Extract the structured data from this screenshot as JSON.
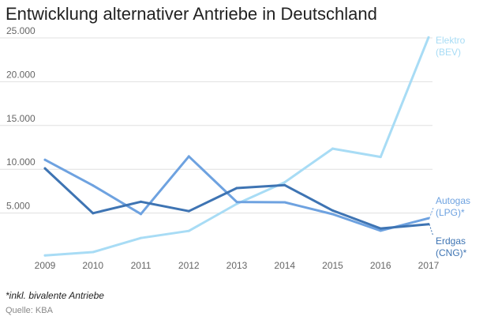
{
  "chart_data": {
    "type": "line",
    "title": "Entwicklung alternativer Antriebe in Deutschland",
    "xlabel": "",
    "ylabel": "",
    "x": [
      "2009",
      "2010",
      "2011",
      "2012",
      "2013",
      "2014",
      "2015",
      "2016",
      "2017"
    ],
    "ylim": [
      0,
      25000
    ],
    "yticks": [
      5000,
      10000,
      15000,
      20000,
      25000
    ],
    "ytick_labels": [
      "5.000",
      "10.000",
      "15.000",
      "20.000",
      "25.000"
    ],
    "grid": true,
    "legend": "end-of-line labels",
    "series": [
      {
        "name_lines": [
          "Elektro",
          "(BEV)"
        ],
        "color": "#a8dcf5",
        "values": [
          160,
          540,
          2150,
          2960,
          6050,
          8520,
          12360,
          11410,
          25060
        ]
      },
      {
        "name_lines": [
          "Autogas",
          "(LPG)*"
        ],
        "color": "#6ea2e0",
        "values": [
          11080,
          8150,
          4890,
          11470,
          6260,
          6230,
          4870,
          2990,
          4400
        ]
      },
      {
        "name_lines": [
          "Erdgas",
          "(CNG)*"
        ],
        "color": "#3e74b3",
        "values": [
          10100,
          4980,
          6290,
          5220,
          7850,
          8190,
          5290,
          3240,
          3720
        ]
      }
    ]
  },
  "footnote": "*inkl. bivalente Antriebe",
  "source": "Quelle: KBA"
}
